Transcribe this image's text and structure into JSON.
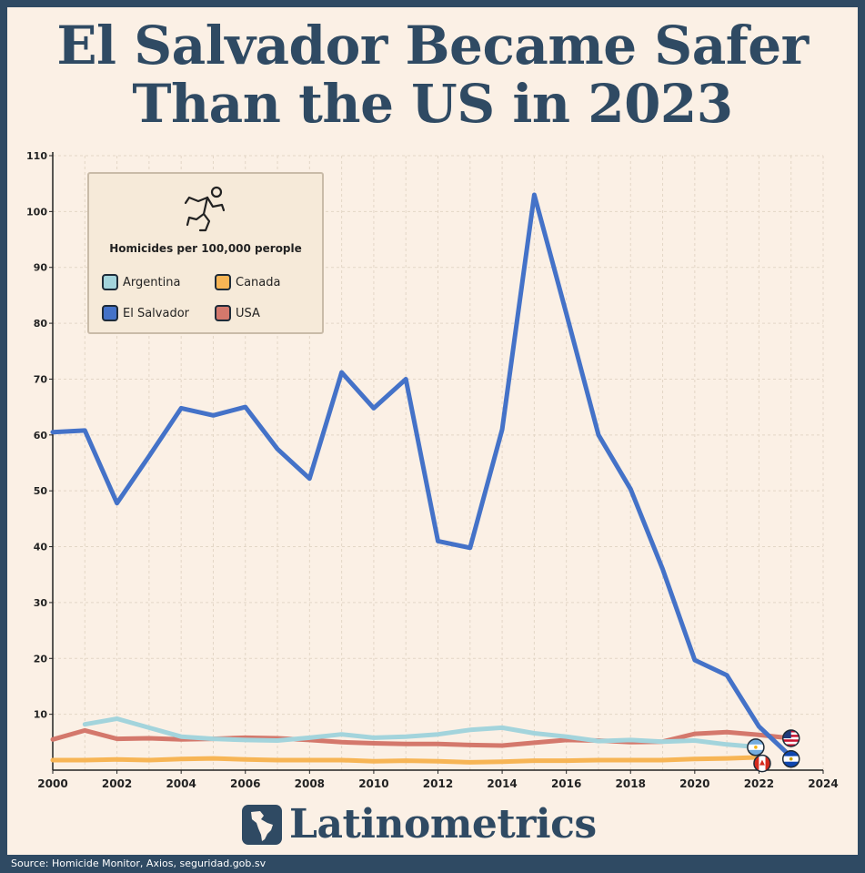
{
  "title": "El Salvador Became Safer Than the US in 2023",
  "source": "Source: Homicide Monitor, Axios, seguridad.gob.sv",
  "brand": "Latinometrics",
  "colors": {
    "background": "#fbf0e5",
    "title": "#2f4a63",
    "frame": "#2f4a63",
    "argentina": "#a3d4dc",
    "canada": "#f7b555",
    "el_salvador": "#4472c8",
    "usa": "#d4786c"
  },
  "chart_data": {
    "type": "line",
    "title": "El Salvador Became Safer Than the US in 2023",
    "legend_title": "Homicides per 100,000 perople",
    "legend_position": "top-left",
    "xlim": [
      2000,
      2024
    ],
    "ylim": [
      0,
      110
    ],
    "x_ticks": [
      "2000",
      "2002",
      "2004",
      "2006",
      "2008",
      "2010",
      "2012",
      "2014",
      "2016",
      "2018",
      "2020",
      "2022",
      "2024"
    ],
    "y_ticks": [
      "10",
      "20",
      "30",
      "40",
      "50",
      "60",
      "70",
      "80",
      "90",
      "100",
      "110"
    ],
    "grid": true,
    "series": [
      {
        "name": "El Salvador",
        "color": "#4472c8",
        "x": [
          2000,
          2001,
          2002,
          2003,
          2004,
          2005,
          2006,
          2007,
          2008,
          2009,
          2010,
          2011,
          2012,
          2013,
          2014,
          2015,
          2016,
          2017,
          2018,
          2019,
          2020,
          2021,
          2022,
          2023
        ],
        "values": [
          60.5,
          60.8,
          47.8,
          56.2,
          64.8,
          63.5,
          65.0,
          57.5,
          52.2,
          71.2,
          64.8,
          70.0,
          41.0,
          39.8,
          61.0,
          103.0,
          81.7,
          60.0,
          50.3,
          36.0,
          19.7,
          17.0,
          7.8,
          2.4
        ]
      },
      {
        "name": "USA",
        "color": "#d4786c",
        "x": [
          2000,
          2001,
          2002,
          2003,
          2004,
          2005,
          2006,
          2007,
          2008,
          2009,
          2010,
          2011,
          2012,
          2013,
          2014,
          2015,
          2016,
          2017,
          2018,
          2019,
          2020,
          2021,
          2022,
          2023
        ],
        "values": [
          5.5,
          7.1,
          5.6,
          5.7,
          5.5,
          5.6,
          5.8,
          5.7,
          5.4,
          5.0,
          4.8,
          4.7,
          4.7,
          4.5,
          4.4,
          4.9,
          5.4,
          5.3,
          5.0,
          5.1,
          6.5,
          6.8,
          6.3,
          5.7
        ]
      },
      {
        "name": "Argentina",
        "color": "#a3d4dc",
        "x": [
          2001,
          2002,
          2003,
          2004,
          2005,
          2006,
          2007,
          2008,
          2009,
          2010,
          2011,
          2012,
          2013,
          2014,
          2015,
          2016,
          2017,
          2018,
          2019,
          2020,
          2021,
          2022
        ],
        "values": [
          8.2,
          9.2,
          7.6,
          6.0,
          5.6,
          5.4,
          5.3,
          5.8,
          6.4,
          5.8,
          6.0,
          6.4,
          7.2,
          7.6,
          6.6,
          6.0,
          5.2,
          5.4,
          5.1,
          5.3,
          4.6,
          4.1
        ]
      },
      {
        "name": "Canada",
        "color": "#f7b555",
        "x": [
          2000,
          2001,
          2002,
          2003,
          2004,
          2005,
          2006,
          2007,
          2008,
          2009,
          2010,
          2011,
          2012,
          2013,
          2014,
          2015,
          2016,
          2017,
          2018,
          2019,
          2020,
          2021,
          2022
        ],
        "values": [
          1.8,
          1.8,
          1.9,
          1.8,
          2.0,
          2.1,
          1.9,
          1.8,
          1.8,
          1.8,
          1.6,
          1.7,
          1.6,
          1.4,
          1.5,
          1.7,
          1.7,
          1.8,
          1.8,
          1.8,
          2.0,
          2.1,
          2.3
        ]
      }
    ],
    "endpoint_markers": [
      {
        "country": "USA",
        "flag": "us-flag-icon",
        "x": 2023.0,
        "y": 5.7
      },
      {
        "country": "Argentina",
        "flag": "argentina-flag-icon",
        "x": 2021.9,
        "y": 4.1
      },
      {
        "country": "El Salvador",
        "flag": "el-salvador-flag-icon",
        "x": 2023.0,
        "y": 2.0
      },
      {
        "country": "Canada",
        "flag": "canada-flag-icon",
        "x": 2022.1,
        "y": 1.2
      }
    ]
  },
  "legend": {
    "items": [
      {
        "label": "Argentina",
        "color": "#a3d4dc"
      },
      {
        "label": "Canada",
        "color": "#f7b555"
      },
      {
        "label": "El Salvador",
        "color": "#4472c8"
      },
      {
        "label": "USA",
        "color": "#d4786c"
      }
    ]
  }
}
